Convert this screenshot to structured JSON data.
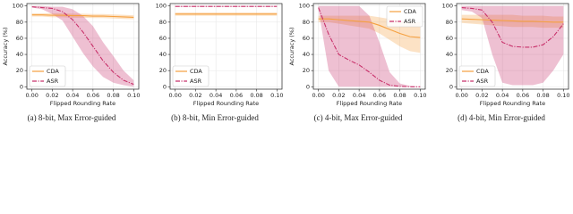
{
  "chart_data": [
    {
      "type": "line",
      "caption": "(a) 8-bit, Max Error-guided",
      "xlabel": "Flipped Rounding Rate",
      "ylabel": "Accuracy (%)",
      "x": [
        0,
        0.01,
        0.02,
        0.03,
        0.04,
        0.05,
        0.06,
        0.07,
        0.08,
        0.09,
        0.1
      ],
      "xlim": [
        -0.005,
        0.105
      ],
      "ylim": [
        -3,
        103
      ],
      "xticks": [
        {
          "value": 0,
          "label": "0.00"
        },
        {
          "value": 0.02,
          "label": "0.02"
        },
        {
          "value": 0.04,
          "label": "0.04"
        },
        {
          "value": 0.06,
          "label": "0.06"
        },
        {
          "value": 0.08,
          "label": "0.08"
        },
        {
          "value": 0.1,
          "label": "0.10"
        }
      ],
      "yticks": [
        0,
        20,
        40,
        60,
        80,
        100
      ],
      "legend": "lower left",
      "series": [
        {
          "name": "CDA",
          "color": "#f5a040",
          "linestyle": "solid",
          "values": [
            89,
            89,
            88.5,
            88.5,
            88,
            88,
            87.5,
            87.5,
            87,
            86.5,
            86
          ],
          "lower": [
            87,
            87,
            86,
            86,
            85.5,
            85.5,
            85,
            85,
            84.5,
            84,
            83.5
          ],
          "upper": [
            91,
            91,
            91,
            91,
            90.5,
            90.5,
            90,
            90,
            89.5,
            89,
            88.5
          ]
        },
        {
          "name": "ASR",
          "color": "#c8306a",
          "linestyle": "dashdot",
          "values": [
            99,
            98,
            97,
            93,
            83,
            68,
            50,
            32,
            18,
            8,
            3
          ],
          "lower": [
            98,
            96,
            90,
            82,
            62,
            42,
            25,
            12,
            5,
            2,
            0
          ],
          "upper": [
            100,
            100,
            99,
            99,
            96,
            88,
            75,
            55,
            38,
            20,
            8
          ]
        }
      ]
    },
    {
      "type": "line",
      "caption": "(b) 8-bit, Min Error-guided",
      "xlabel": "Flipped Rounding Rate",
      "x": [
        0,
        0.01,
        0.02,
        0.03,
        0.04,
        0.05,
        0.06,
        0.07,
        0.08,
        0.09,
        0.1
      ],
      "xlim": [
        -0.005,
        0.105
      ],
      "ylim": [
        -3,
        103
      ],
      "xticks": [
        {
          "value": 0,
          "label": "0.00"
        },
        {
          "value": 0.02,
          "label": "0.02"
        },
        {
          "value": 0.04,
          "label": "0.04"
        },
        {
          "value": 0.06,
          "label": "0.06"
        },
        {
          "value": 0.08,
          "label": "0.08"
        },
        {
          "value": 0.1,
          "label": "0.10"
        }
      ],
      "yticks": [
        0,
        20,
        40,
        60,
        80,
        100
      ],
      "legend": "lower left",
      "series": [
        {
          "name": "CDA",
          "color": "#f5a040",
          "linestyle": "solid",
          "values": [
            90,
            90,
            90,
            90,
            90,
            90,
            90,
            90,
            90,
            90,
            90
          ],
          "lower": [
            88,
            88,
            88,
            88,
            88,
            88,
            88,
            88,
            88,
            88,
            88
          ],
          "upper": [
            92,
            92,
            92,
            92,
            92,
            92,
            92,
            92,
            92,
            92,
            92
          ]
        },
        {
          "name": "ASR",
          "color": "#c8306a",
          "linestyle": "dashdot",
          "values": [
            99.5,
            99.5,
            99.5,
            99.5,
            99.5,
            99.5,
            99.5,
            99.5,
            99.5,
            99.5,
            99.5
          ],
          "lower": [
            99,
            99,
            99,
            99,
            99,
            99,
            99,
            99,
            99,
            99,
            99
          ],
          "upper": [
            100,
            100,
            100,
            100,
            100,
            100,
            100,
            100,
            100,
            100,
            100
          ]
        }
      ]
    },
    {
      "type": "line",
      "caption": "(c) 4-bit, Max Error-guided",
      "xlabel": "Flipped Rounding Rate",
      "ylabel": "Accuracy (%)",
      "x": [
        0,
        0.01,
        0.02,
        0.03,
        0.04,
        0.05,
        0.06,
        0.07,
        0.08,
        0.09,
        0.1
      ],
      "xlim": [
        -0.005,
        0.105
      ],
      "ylim": [
        -3,
        103
      ],
      "xticks": [
        {
          "value": 0,
          "label": "0.00"
        },
        {
          "value": 0.02,
          "label": "0.02"
        },
        {
          "value": 0.04,
          "label": "0.04"
        },
        {
          "value": 0.06,
          "label": "0.06"
        },
        {
          "value": 0.08,
          "label": "0.08"
        },
        {
          "value": 0.1,
          "label": "0.10"
        }
      ],
      "yticks": [
        0,
        20,
        40,
        60,
        80,
        100
      ],
      "legend": "upper right",
      "series": [
        {
          "name": "CDA",
          "color": "#f5a040",
          "linestyle": "solid",
          "values": [
            84,
            84,
            83,
            82,
            81,
            80,
            76,
            71,
            66,
            62,
            61
          ],
          "lower": [
            80,
            80,
            78,
            76,
            74,
            72,
            66,
            58,
            50,
            44,
            42
          ],
          "upper": [
            88,
            88,
            88,
            88,
            88,
            88,
            86,
            84,
            82,
            80,
            80
          ]
        },
        {
          "name": "ASR",
          "color": "#c8306a",
          "linestyle": "dashdot",
          "values": [
            98,
            65,
            40,
            33,
            27,
            18,
            8,
            2,
            0.5,
            0,
            0
          ],
          "lower": [
            96,
            20,
            0,
            0,
            0,
            0,
            0,
            0,
            0,
            0,
            0
          ],
          "upper": [
            100,
            100,
            100,
            100,
            100,
            88,
            55,
            18,
            4,
            1,
            0
          ]
        }
      ]
    },
    {
      "type": "line",
      "caption": "(d) 4-bit, Min Error-guided",
      "xlabel": "Flipped Rounding Rate",
      "x": [
        0,
        0.01,
        0.02,
        0.03,
        0.04,
        0.05,
        0.06,
        0.07,
        0.08,
        0.09,
        0.1
      ],
      "xlim": [
        -0.005,
        0.105
      ],
      "ylim": [
        -3,
        103
      ],
      "xticks": [
        {
          "value": 0,
          "label": "0.00"
        },
        {
          "value": 0.02,
          "label": "0.02"
        },
        {
          "value": 0.04,
          "label": "0.04"
        },
        {
          "value": 0.06,
          "label": "0.06"
        },
        {
          "value": 0.08,
          "label": "0.08"
        },
        {
          "value": 0.1,
          "label": "0.10"
        }
      ],
      "yticks": [
        0,
        20,
        40,
        60,
        80,
        100
      ],
      "legend": "lower left",
      "series": [
        {
          "name": "CDA",
          "color": "#f5a040",
          "linestyle": "solid",
          "values": [
            84,
            83.5,
            83,
            82.5,
            82,
            81.5,
            81,
            81,
            80.5,
            80,
            80
          ],
          "lower": [
            79,
            78,
            77,
            76,
            75,
            74,
            74,
            74,
            73,
            73,
            73
          ],
          "upper": [
            89,
            89,
            89,
            89,
            89,
            89,
            88,
            88,
            88,
            87,
            87
          ]
        },
        {
          "name": "ASR",
          "color": "#c8306a",
          "linestyle": "dashdot",
          "values": [
            98,
            97,
            95,
            80,
            55,
            50,
            49,
            49,
            52,
            62,
            78
          ],
          "lower": [
            95,
            93,
            85,
            40,
            5,
            2,
            2,
            2,
            5,
            20,
            40
          ],
          "upper": [
            100,
            100,
            100,
            100,
            100,
            100,
            100,
            100,
            100,
            100,
            100
          ]
        }
      ]
    }
  ]
}
